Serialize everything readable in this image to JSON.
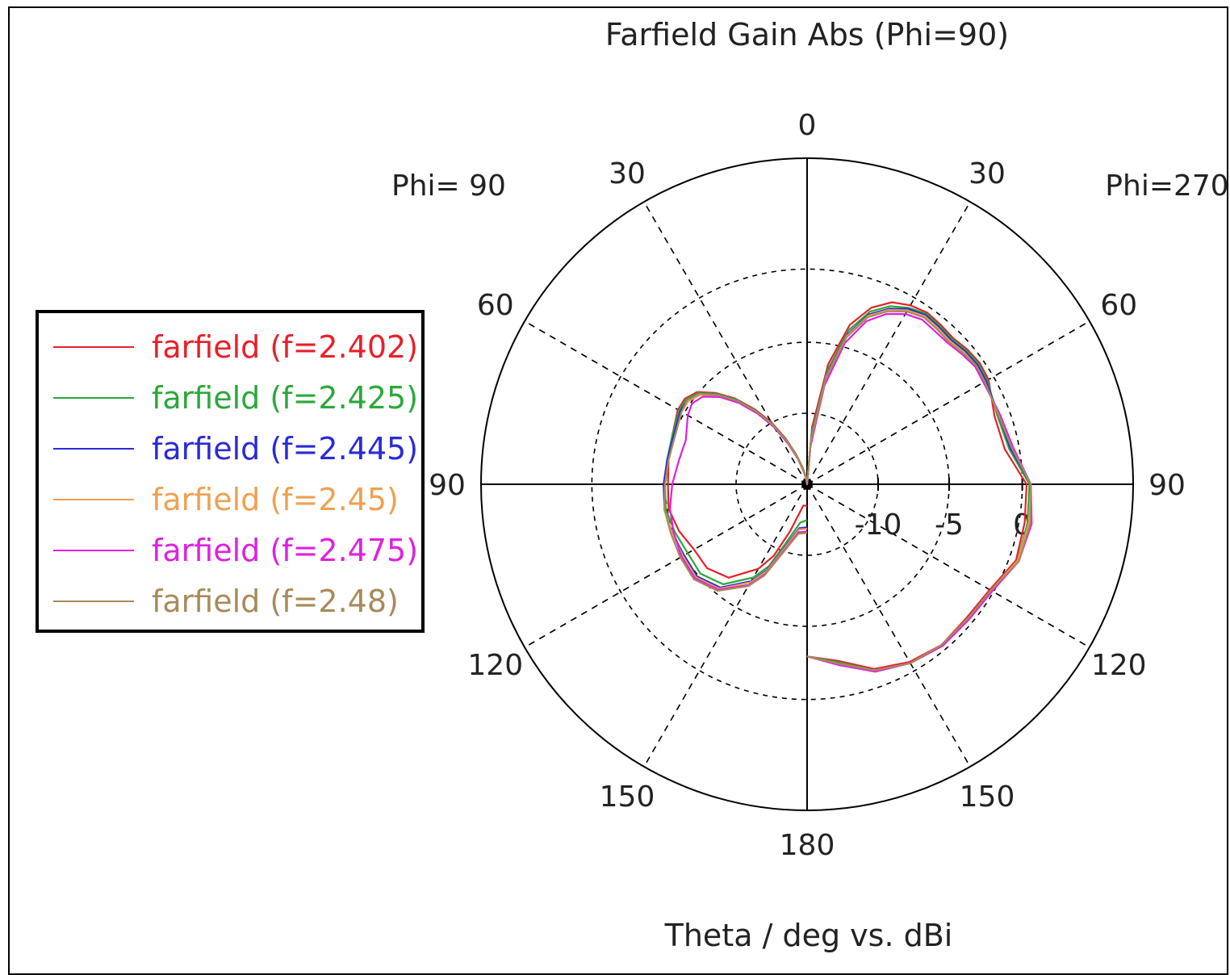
{
  "chart_data": {
    "type": "polar-line",
    "title": "Farfield Gain Abs (Phi=90)",
    "xlabel": "Theta / deg vs. dBi",
    "left_side_label": "Phi= 90",
    "right_side_label": "Phi=270",
    "angle_labels": [
      {
        "deg": 0,
        "text": "0"
      },
      {
        "deg": 30,
        "text": "30"
      },
      {
        "deg": 60,
        "text": "60"
      },
      {
        "deg": 90,
        "text": "90"
      },
      {
        "deg": 120,
        "text": "120"
      },
      {
        "deg": 150,
        "text": "150"
      },
      {
        "deg": 180,
        "text": "180"
      },
      {
        "deg": -30,
        "text": "30"
      },
      {
        "deg": -60,
        "text": "60"
      },
      {
        "deg": -90,
        "text": "90"
      },
      {
        "deg": -120,
        "text": "120"
      },
      {
        "deg": -150,
        "text": "150"
      }
    ],
    "radial_ticks": [
      "-10",
      "-5",
      "0"
    ],
    "radial_range_dbi": [
      -15,
      0
    ],
    "angle_convention": "theta in degrees measured clockwise from top; negative = Phi=90 side (left), positive = Phi=270 side (right)",
    "legend_position": "left",
    "series": [
      {
        "name": "farfield (f=2.402)",
        "color": "#e8202a",
        "theta": [
          -180,
          -170,
          -160,
          -155,
          -150,
          -140,
          -130,
          -120,
          -110,
          -100,
          -90,
          -80,
          -70,
          -60,
          -55,
          -50,
          -45,
          -40,
          -35,
          -30,
          -25,
          -20,
          -15,
          -10,
          -5,
          0,
          5,
          10,
          15,
          20,
          25,
          30,
          35,
          40,
          45,
          50,
          55,
          60,
          70,
          80,
          90,
          100,
          110,
          120,
          130,
          140,
          150,
          160,
          170,
          180
        ],
        "gain": [
          -13.5,
          -13.5,
          -11.5,
          -9.5,
          -8.2,
          -6.5,
          -5.9,
          -5.9,
          -5.5,
          -5.2,
          -5.3,
          -5.2,
          -5.0,
          -4.6,
          -4.6,
          -5.0,
          -6.0,
          -7.2,
          -8.6,
          -10.0,
          -11.5,
          -12.8,
          -13.8,
          -14.4,
          -14.8,
          -15.0,
          -11.0,
          -6.5,
          -3.5,
          -1.9,
          -1.0,
          -0.6,
          -0.4,
          -0.5,
          -0.6,
          -0.4,
          -0.3,
          -0.4,
          -1.1,
          -1.0,
          0.3,
          0.4,
          0.5,
          -0.3,
          -0.5,
          -0.4,
          -0.7,
          -1.3,
          -2.5,
          -3.0
        ]
      },
      {
        "name": "farfield (f=2.425)",
        "color": "#2aa83a",
        "theta": [
          -180,
          -170,
          -160,
          -155,
          -150,
          -140,
          -130,
          -120,
          -110,
          -100,
          -90,
          -80,
          -70,
          -60,
          -55,
          -50,
          -45,
          -40,
          -35,
          -30,
          -25,
          -20,
          -15,
          -10,
          -5,
          0,
          5,
          10,
          15,
          20,
          25,
          30,
          35,
          40,
          45,
          50,
          55,
          60,
          70,
          80,
          90,
          100,
          110,
          120,
          130,
          140,
          150,
          160,
          170,
          180
        ],
        "gain": [
          -12.5,
          -12.3,
          -10.6,
          -8.7,
          -7.5,
          -5.9,
          -5.3,
          -5.4,
          -5.2,
          -5.0,
          -5.1,
          -5.1,
          -5.0,
          -4.7,
          -4.7,
          -5.1,
          -6.1,
          -7.3,
          -8.7,
          -10.1,
          -11.6,
          -12.9,
          -13.9,
          -14.5,
          -14.9,
          -15.0,
          -11.5,
          -7.0,
          -3.9,
          -2.2,
          -1.3,
          -0.8,
          -0.5,
          -0.6,
          -0.7,
          -0.5,
          -0.4,
          -0.5,
          -0.9,
          -0.7,
          0.5,
          0.6,
          0.6,
          -0.2,
          -0.4,
          -0.4,
          -0.6,
          -1.2,
          -2.4,
          -3.0
        ]
      },
      {
        "name": "farfield (f=2.445)",
        "color": "#2a2ad8",
        "theta": [
          -180,
          -170,
          -160,
          -155,
          -150,
          -140,
          -130,
          -120,
          -110,
          -100,
          -90,
          -80,
          -70,
          -60,
          -55,
          -50,
          -45,
          -40,
          -35,
          -30,
          -25,
          -20,
          -15,
          -10,
          -5,
          0,
          5,
          10,
          15,
          20,
          25,
          30,
          35,
          40,
          45,
          50,
          55,
          60,
          70,
          80,
          90,
          100,
          110,
          120,
          130,
          140,
          150,
          160,
          170,
          180
        ],
        "gain": [
          -12.0,
          -11.9,
          -10.2,
          -8.4,
          -7.2,
          -5.6,
          -5.0,
          -5.1,
          -5.0,
          -4.9,
          -5.0,
          -5.1,
          -5.1,
          -4.8,
          -4.8,
          -5.2,
          -6.2,
          -7.4,
          -8.8,
          -10.2,
          -11.7,
          -13.0,
          -14.0,
          -14.6,
          -14.9,
          -15.0,
          -11.8,
          -7.3,
          -4.2,
          -2.4,
          -1.5,
          -0.9,
          -0.6,
          -0.7,
          -0.8,
          -0.6,
          -0.5,
          -0.6,
          -0.8,
          -0.6,
          0.6,
          0.7,
          0.6,
          -0.2,
          -0.4,
          -0.4,
          -0.6,
          -1.2,
          -2.3,
          -3.0
        ]
      },
      {
        "name": "farfield (f=2.45)",
        "color": "#f0a050",
        "theta": [
          -180,
          -170,
          -160,
          -155,
          -150,
          -140,
          -130,
          -120,
          -110,
          -100,
          -90,
          -80,
          -70,
          -60,
          -55,
          -50,
          -45,
          -40,
          -35,
          -30,
          -25,
          -20,
          -15,
          -10,
          -5,
          0,
          5,
          10,
          15,
          20,
          25,
          30,
          35,
          40,
          45,
          50,
          55,
          60,
          70,
          80,
          90,
          100,
          110,
          120,
          130,
          140,
          150,
          160,
          170,
          180
        ],
        "gain": [
          -11.9,
          -11.8,
          -10.1,
          -8.3,
          -7.1,
          -5.5,
          -4.9,
          -5.0,
          -5.0,
          -4.9,
          -5.1,
          -5.2,
          -5.2,
          -4.9,
          -4.9,
          -5.3,
          -6.3,
          -7.5,
          -8.9,
          -10.3,
          -11.8,
          -13.0,
          -14.0,
          -14.6,
          -14.9,
          -15.0,
          -11.9,
          -7.4,
          -4.3,
          -2.5,
          -1.6,
          -1.0,
          -0.7,
          -0.8,
          -0.9,
          -0.7,
          -0.6,
          -0.7,
          -0.8,
          -0.5,
          0.6,
          0.7,
          0.6,
          -0.2,
          -0.4,
          -0.4,
          -0.6,
          -1.2,
          -2.3,
          -3.0
        ]
      },
      {
        "name": "farfield (f=2.475)",
        "color": "#e020e0",
        "theta": [
          -180,
          -170,
          -160,
          -155,
          -150,
          -140,
          -130,
          -120,
          -110,
          -100,
          -90,
          -80,
          -70,
          -60,
          -55,
          -50,
          -45,
          -40,
          -35,
          -30,
          -25,
          -20,
          -15,
          -10,
          -5,
          0,
          5,
          10,
          15,
          20,
          25,
          30,
          35,
          40,
          45,
          50,
          55,
          60,
          70,
          80,
          90,
          100,
          110,
          120,
          130,
          140,
          150,
          160,
          170,
          180
        ],
        "gain": [
          -11.7,
          -11.6,
          -9.9,
          -8.1,
          -6.9,
          -5.4,
          -4.8,
          -4.9,
          -5.1,
          -5.3,
          -5.6,
          -5.9,
          -6.0,
          -5.4,
          -5.2,
          -5.5,
          -6.4,
          -7.6,
          -9.0,
          -10.4,
          -11.9,
          -13.1,
          -14.1,
          -14.7,
          -15.0,
          -15.0,
          -12.4,
          -8.0,
          -4.8,
          -2.9,
          -1.9,
          -1.3,
          -1.0,
          -1.1,
          -1.1,
          -0.9,
          -0.7,
          -0.8,
          -0.7,
          -0.4,
          0.6,
          0.9,
          0.7,
          -0.1,
          -0.3,
          -0.3,
          -0.6,
          -1.1,
          -2.2,
          -3.0
        ]
      },
      {
        "name": "farfield (f=2.48)",
        "color": "#a88a5a",
        "theta": [
          -180,
          -170,
          -160,
          -155,
          -150,
          -140,
          -130,
          -120,
          -110,
          -100,
          -90,
          -80,
          -70,
          -60,
          -55,
          -50,
          -45,
          -40,
          -35,
          -30,
          -25,
          -20,
          -15,
          -10,
          -5,
          0,
          5,
          10,
          15,
          20,
          25,
          30,
          35,
          40,
          45,
          50,
          55,
          60,
          70,
          80,
          90,
          100,
          110,
          120,
          130,
          140,
          150,
          160,
          170,
          180
        ],
        "gain": [
          -11.6,
          -11.5,
          -9.8,
          -8.0,
          -6.8,
          -5.3,
          -4.7,
          -4.8,
          -4.9,
          -4.9,
          -5.1,
          -5.2,
          -5.2,
          -4.9,
          -4.8,
          -5.2,
          -6.2,
          -7.4,
          -8.8,
          -10.2,
          -11.7,
          -13.0,
          -14.0,
          -14.6,
          -14.9,
          -15.0,
          -12.0,
          -7.5,
          -4.4,
          -2.6,
          -1.7,
          -1.1,
          -0.8,
          -0.9,
          -1.0,
          -0.8,
          -0.6,
          -0.7,
          -0.8,
          -0.5,
          0.6,
          0.8,
          0.7,
          -0.2,
          -0.4,
          -0.4,
          -0.6,
          -1.2,
          -2.3,
          -3.0
        ]
      }
    ]
  }
}
